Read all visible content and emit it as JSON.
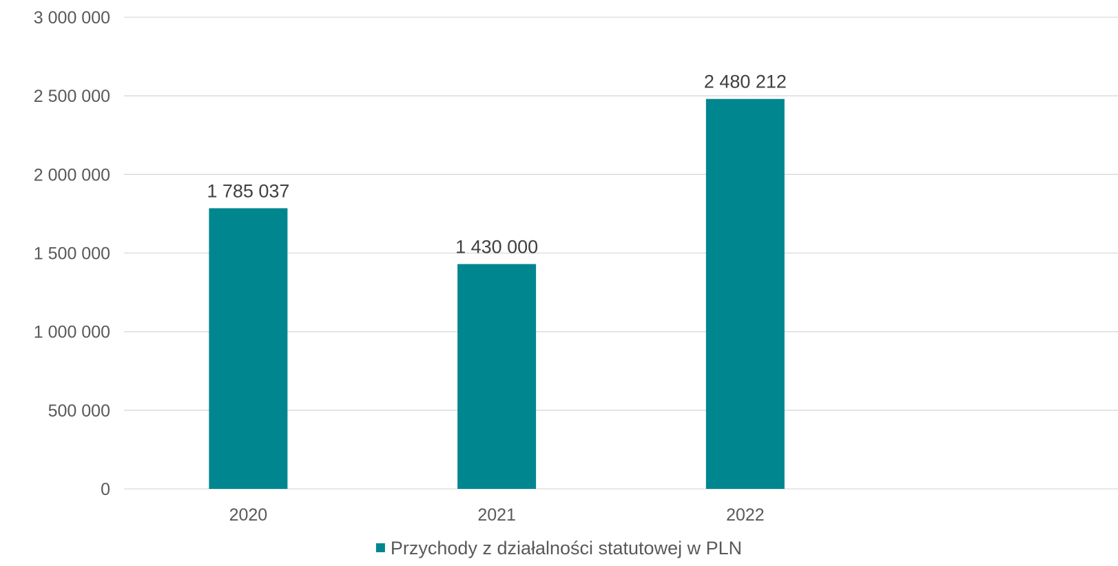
{
  "chart_data": {
    "type": "bar",
    "categories": [
      "2020",
      "2021",
      "2022"
    ],
    "series": [
      {
        "name": "Przychody z działalności statutowej w PLN",
        "values": [
          1785037,
          1430000,
          2480212
        ],
        "value_labels": [
          "1 785 037",
          "1 430 000",
          "2 480 212"
        ],
        "color": "#00868F"
      }
    ],
    "ylim": [
      0,
      3000000
    ],
    "y_ticks": [
      0,
      500000,
      1000000,
      1500000,
      2000000,
      2500000,
      3000000
    ],
    "y_tick_labels": [
      "0",
      "500 000",
      "1 000 000",
      "1 500 000",
      "2 000 000",
      "2 500 000",
      "3 000 000"
    ],
    "grid": true,
    "gridline_color": "#D9D9D9",
    "legend_position": "bottom",
    "title": "",
    "xlabel": "",
    "ylabel": ""
  }
}
